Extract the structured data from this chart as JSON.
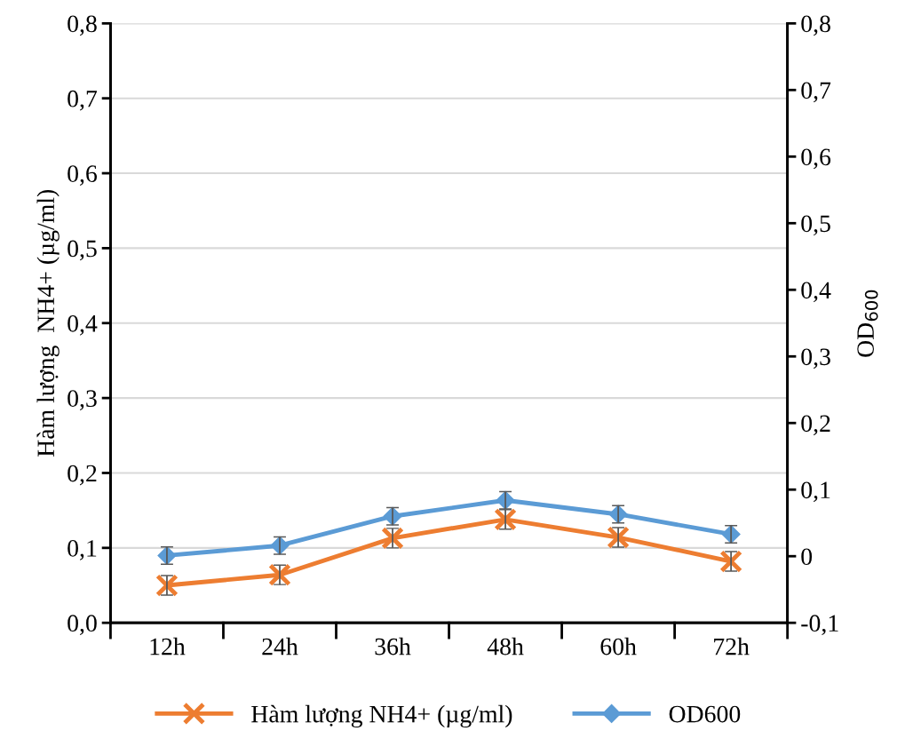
{
  "chart_data": {
    "type": "line",
    "categories": [
      "12h",
      "24h",
      "36h",
      "48h",
      "60h",
      "72h"
    ],
    "ylabel": "Hàm lượng  NH4+ (µg/ml)",
    "y2label": "OD$_{600}$",
    "series": [
      {
        "name": "Hàm lượng NH4+ (µg/ml)",
        "color": "#ed7d31",
        "marker": "cross",
        "values": [
          0.05,
          0.064,
          0.113,
          0.138,
          0.114,
          0.082
        ],
        "errors": [
          0.013,
          0.013,
          0.013,
          0.013,
          0.013,
          0.013
        ]
      },
      {
        "name": "OD600",
        "color": "#5b9bd5",
        "marker": "diamond",
        "axis": "y2",
        "values": [
          0.001,
          0.016,
          0.06,
          0.084,
          0.063,
          0.033
        ],
        "errors": [
          0.013,
          0.013,
          0.013,
          0.013,
          0.013,
          0.013
        ]
      }
    ],
    "ylim": [
      0,
      0.8
    ],
    "yticks": [
      {
        "value": 0,
        "label": "0,0"
      },
      {
        "value": 0.1,
        "label": "0,1"
      },
      {
        "value": 0.2,
        "label": "0,2"
      },
      {
        "value": 0.3,
        "label": "0,3"
      },
      {
        "value": 0.4,
        "label": "0,4"
      },
      {
        "value": 0.5,
        "label": "0,5"
      },
      {
        "value": 0.6,
        "label": "0,6"
      },
      {
        "value": 0.7,
        "label": "0,7"
      },
      {
        "value": 0.8,
        "label": "0,8"
      }
    ],
    "y2lim": [
      -0.1,
      0.8
    ],
    "y2ticks": [
      {
        "value": -0.1,
        "label": "-0,1"
      },
      0,
      {
        "value": 0.1,
        "label": "0,1"
      },
      {
        "value": 0.2,
        "label": "0,2"
      },
      {
        "value": 0.3,
        "label": "0,3"
      },
      {
        "value": 0.4,
        "label": "0,4"
      },
      {
        "value": 0.5,
        "label": "0,5"
      },
      {
        "value": 0.6,
        "label": "0,6"
      },
      {
        "value": 0.7,
        "label": "0,7"
      },
      {
        "value": 0.8,
        "label": "0,8"
      }
    ],
    "grid": "y",
    "legend": "bottom",
    "line_style": "solid"
  }
}
